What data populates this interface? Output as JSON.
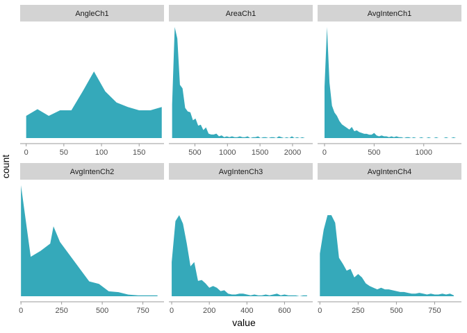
{
  "chart_data": {
    "type": "area",
    "xlabel": "value",
    "ylabel": "count",
    "fill_color": "#35A9BA",
    "strip_color": "#D3D3D3",
    "axis_color": "#9A9A9A",
    "grid": false,
    "facets": [
      {
        "name": "AngleCh1",
        "xlim": [
          -8,
          183
        ],
        "ymax": 100,
        "xticks": [
          0,
          50,
          100,
          150
        ],
        "x": [
          0,
          15,
          30,
          45,
          60,
          75,
          90,
          105,
          120,
          135,
          150,
          165,
          180
        ],
        "y": [
          20,
          26,
          20,
          25,
          25,
          42,
          60,
          42,
          32,
          28,
          25,
          25,
          28
        ]
      },
      {
        "name": "AreaCh1",
        "xlim": [
          100,
          2310
        ],
        "ymax": 125,
        "xticks": [
          500,
          1000,
          1500,
          2000
        ],
        "x": [
          150,
          190,
          230,
          270,
          310,
          350,
          390,
          430,
          470,
          510,
          550,
          590,
          630,
          670,
          710,
          750,
          790,
          830,
          870,
          910,
          950,
          990,
          1030,
          1070,
          1110,
          1150,
          1190,
          1230,
          1270,
          1310,
          1350,
          1390,
          1430,
          1470,
          1510,
          1550,
          1590,
          1630,
          1670,
          1710,
          1750,
          1790,
          1830,
          1870,
          1910,
          1950,
          1990,
          2030,
          2070,
          2110,
          2150,
          2190
        ],
        "y": [
          38,
          125,
          112,
          60,
          56,
          34,
          30,
          29,
          20,
          22,
          14,
          15,
          9,
          12,
          5,
          4,
          4,
          5,
          2,
          3,
          1,
          2,
          1,
          2,
          1,
          1,
          2,
          1,
          1,
          2,
          0,
          1,
          1,
          2,
          0,
          1,
          1,
          0,
          1,
          1,
          0,
          2,
          1,
          0,
          1,
          0,
          2,
          0,
          1,
          0,
          1,
          0
        ]
      },
      {
        "name": "AvgIntenCh1",
        "xlim": [
          -70,
          1380
        ],
        "ymax": 130,
        "xticks": [
          0,
          500,
          1000
        ],
        "x": [
          0,
          25,
          50,
          75,
          100,
          125,
          150,
          175,
          200,
          225,
          250,
          275,
          300,
          325,
          350,
          375,
          400,
          425,
          450,
          475,
          500,
          525,
          550,
          575,
          600,
          625,
          650,
          675,
          700,
          725,
          750,
          775,
          800,
          825,
          850,
          875,
          900,
          925,
          950,
          975,
          1000,
          1025,
          1050,
          1075,
          1100,
          1125,
          1150,
          1175,
          1200,
          1225,
          1250,
          1275,
          1300,
          1325
        ],
        "y": [
          60,
          130,
          65,
          38,
          30,
          26,
          20,
          16,
          14,
          12,
          10,
          13,
          8,
          9,
          7,
          6,
          5,
          5,
          4,
          4,
          6,
          3,
          2,
          3,
          2,
          2,
          1,
          2,
          1,
          2,
          1,
          1,
          0,
          1,
          1,
          0,
          1,
          0,
          0,
          1,
          0,
          0,
          1,
          0,
          0,
          1,
          0,
          0,
          0,
          1,
          0,
          0,
          1,
          0
        ]
      },
      {
        "name": "AvgIntenCh2",
        "xlim": [
          -5,
          880
        ],
        "ymax": 135,
        "xticks": [
          0,
          250,
          500,
          750
        ],
        "x": [
          0,
          60,
          120,
          180,
          200,
          240,
          300,
          360,
          420,
          480,
          540,
          600,
          660,
          720,
          780,
          840
        ],
        "y": [
          135,
          48,
          55,
          64,
          85,
          66,
          50,
          34,
          18,
          15,
          6,
          5,
          2,
          1,
          1,
          1
        ]
      },
      {
        "name": "AvgIntenCh3",
        "xlim": [
          -15,
          750
        ],
        "ymax": 130,
        "xticks": [
          0,
          200,
          400,
          600
        ],
        "x": [
          0,
          20,
          40,
          60,
          80,
          100,
          120,
          140,
          160,
          180,
          200,
          220,
          240,
          260,
          280,
          300,
          320,
          340,
          360,
          380,
          400,
          420,
          440,
          460,
          480,
          500,
          520,
          540,
          560,
          580,
          600,
          620,
          640,
          660,
          680,
          700,
          720
        ],
        "y": [
          40,
          88,
          95,
          85,
          62,
          35,
          40,
          18,
          19,
          15,
          10,
          12,
          10,
          6,
          7,
          3,
          2,
          2,
          3,
          3,
          2,
          1,
          2,
          1,
          1,
          2,
          1,
          2,
          3,
          1,
          2,
          1,
          1,
          1,
          0,
          1,
          1
        ]
      },
      {
        "name": "AvgIntenCh4",
        "xlim": [
          -15,
          925
        ],
        "ymax": 130,
        "xticks": [
          0,
          250,
          500,
          750
        ],
        "x": [
          0,
          25,
          50,
          75,
          100,
          125,
          150,
          175,
          200,
          225,
          250,
          275,
          300,
          325,
          350,
          375,
          400,
          425,
          450,
          475,
          500,
          525,
          550,
          575,
          600,
          625,
          650,
          675,
          700,
          725,
          750,
          775,
          800,
          825,
          850,
          875
        ],
        "y": [
          50,
          78,
          95,
          95,
          86,
          45,
          38,
          30,
          32,
          22,
          26,
          22,
          15,
          12,
          10,
          8,
          10,
          8,
          8,
          7,
          6,
          5,
          5,
          4,
          3,
          3,
          4,
          3,
          2,
          3,
          2,
          2,
          3,
          2,
          3,
          1
        ]
      }
    ]
  }
}
